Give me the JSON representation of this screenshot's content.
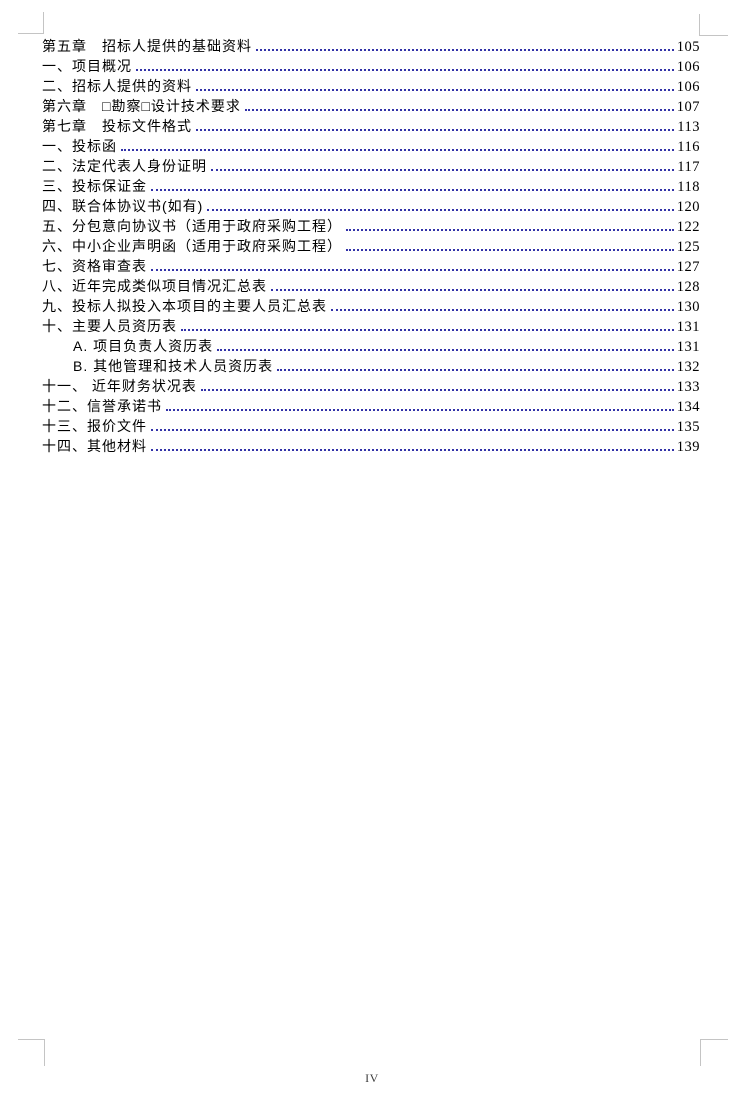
{
  "page": {
    "footer_page_label": "IV"
  },
  "colors": {
    "text": "#000000",
    "leader": "#3232a8",
    "crop_mark": "#c4c4c4"
  },
  "toc": {
    "entries": [
      {
        "label": "第五章　招标人提供的基础资料",
        "page": "105",
        "indent": 0
      },
      {
        "label": "一、项目概况",
        "page": "106",
        "indent": 0
      },
      {
        "label": "二、招标人提供的资料",
        "page": "106",
        "indent": 0
      },
      {
        "label": "第六章　□勘察□设计技术要求",
        "page": "107",
        "indent": 0
      },
      {
        "label": "第七章　投标文件格式",
        "page": "113",
        "indent": 0
      },
      {
        "label": "一、投标函",
        "page": "116",
        "indent": 0
      },
      {
        "label": "二、法定代表人身份证明",
        "page": "117",
        "indent": 0
      },
      {
        "label": "三、投标保证金",
        "page": "118",
        "indent": 0
      },
      {
        "label": "四、联合体协议书(如有)",
        "page": "120",
        "indent": 0
      },
      {
        "label": "五、分包意向协议书（适用于政府采购工程）",
        "page": "122",
        "indent": 0
      },
      {
        "label": "六、中小企业声明函（适用于政府采购工程）",
        "page": "125",
        "indent": 0
      },
      {
        "label": "七、资格审查表",
        "page": "127",
        "indent": 0
      },
      {
        "label": "八、近年完成类似项目情况汇总表",
        "page": "128",
        "indent": 0
      },
      {
        "label": "九、投标人拟投入本项目的主要人员汇总表",
        "page": "130",
        "indent": 0
      },
      {
        "label": "十、主要人员资历表",
        "page": "131",
        "indent": 0
      },
      {
        "label": "A. 项目负责人资历表",
        "page": "131",
        "indent": 1
      },
      {
        "label": "B. 其他管理和技术人员资历表",
        "page": "132",
        "indent": 1
      },
      {
        "label": "十一、 近年财务状况表",
        "page": "133",
        "indent": 0
      },
      {
        "label": "十二、信誉承诺书",
        "page": "134",
        "indent": 0
      },
      {
        "label": "十三、报价文件",
        "page": "135",
        "indent": 0
      },
      {
        "label": "十四、其他材料",
        "page": "139",
        "indent": 0
      }
    ]
  }
}
